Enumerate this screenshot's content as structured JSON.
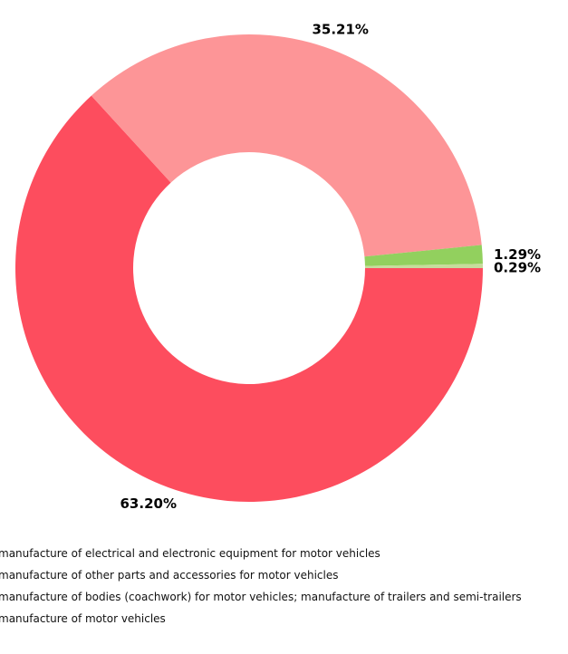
{
  "chart_data": {
    "type": "pie",
    "donut": true,
    "categories": [
      "manufacture of electrical and electronic equipment for motor vehicles",
      "manufacture of other parts and accessories for motor vehicles",
      "manufacture of bodies (coachwork) for motor vehicles; manufacture of trailers and semi-trailers",
      "manufacture of motor vehicles"
    ],
    "values": [
      1.29,
      35.21,
      0.29,
      63.2
    ],
    "labels": [
      "1.29%",
      "35.21%",
      "0.29%",
      "63.20%"
    ],
    "colors": [
      "#92d05e",
      "#fd9597",
      "#c7db9c",
      "#fd4d5e"
    ],
    "legend_position": "bottom-left"
  }
}
